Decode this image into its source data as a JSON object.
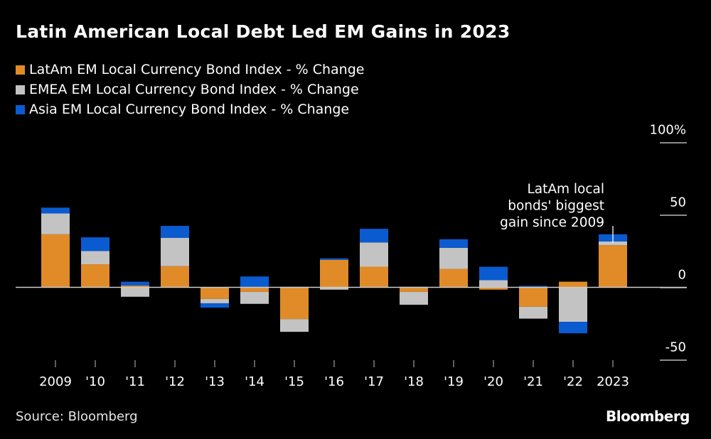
{
  "title": "Latin American Local Debt Led EM Gains in 2023",
  "source": "Source: Bloomberg",
  "logo": "Bloomberg",
  "chart_data": {
    "type": "bar",
    "stacked": true,
    "title": "Latin American Local Debt Led EM Gains in 2023",
    "categories": [
      "2009",
      "'10",
      "'11",
      "'12",
      "'13",
      "'14",
      "'15",
      "'16",
      "'17",
      "'18",
      "'19",
      "'20",
      "'21",
      "'22",
      "2023"
    ],
    "series": [
      {
        "name": "LatAm EM Local Currency Bond Index - % Change",
        "color": "#e08b27",
        "values": [
          36.6,
          15.9,
          1.3,
          14.6,
          -8.0,
          -3.1,
          -21.9,
          19.0,
          14.2,
          -3.1,
          12.7,
          -1.6,
          -13.4,
          3.9,
          29.1
        ]
      },
      {
        "name": "EMEA EM Local Currency Bond Index - % Change",
        "color": "#c3c3c3",
        "values": [
          14.4,
          9.1,
          -6.5,
          19.6,
          -3.0,
          -8.3,
          -8.8,
          -1.6,
          16.8,
          -8.9,
          14.6,
          4.9,
          -8.2,
          -23.8,
          2.6
        ]
      },
      {
        "name": "Asia EM Local Currency Bond Index - % Change",
        "color": "#0a5bd0",
        "values": [
          4.0,
          9.5,
          2.6,
          8.2,
          -3.0,
          7.5,
          0.5,
          1.0,
          9.4,
          0.5,
          5.9,
          9.3,
          1.0,
          -7.9,
          4.9
        ]
      }
    ],
    "y_ticks": [
      "100%",
      "50",
      "0",
      "-50"
    ],
    "y_tick_values": [
      100,
      50,
      0,
      -50
    ],
    "ylim": [
      -55,
      100
    ],
    "y_axis_position": "right",
    "grid": false,
    "legend_position": "top-left",
    "annotation": {
      "category": "2023",
      "lines": [
        "LatAm local",
        "bonds' biggest",
        "gain since 2009"
      ]
    }
  }
}
